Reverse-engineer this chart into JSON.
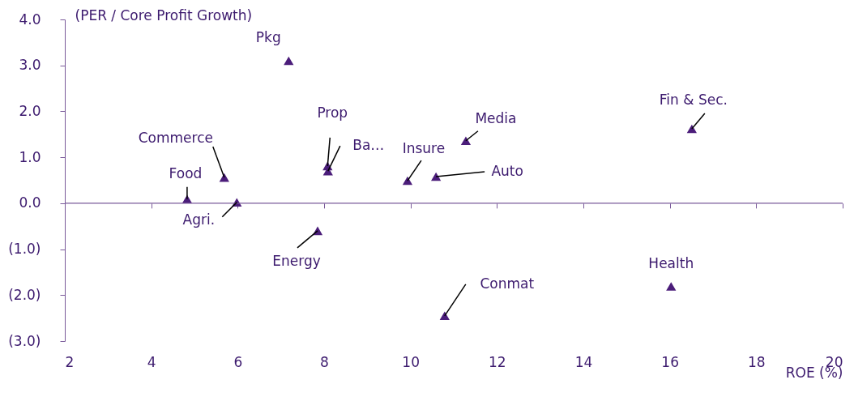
{
  "chart_data": {
    "type": "scatter",
    "ylabel": "(PER / Core Profit Growth)",
    "xlabel": "ROE (%)",
    "x": [
      7.18,
      5.69,
      4.83,
      5.98,
      8.08,
      8.09,
      7.85,
      9.93,
      10.59,
      11.28,
      10.79,
      16.51,
      16.03
    ],
    "series": [
      {
        "color": "#4b1d7a",
        "values": [
          3.1,
          0.56,
          0.09,
          0.02,
          0.81,
          0.7,
          -0.6,
          0.49,
          0.58,
          1.36,
          -2.45,
          1.62,
          -1.81
        ]
      }
    ],
    "marker": "triangle",
    "grid": false,
    "ref_lines": [
      {
        "axis": "y",
        "value": 0,
        "color": "#7a5a9a"
      }
    ],
    "xlim": [
      2,
      20
    ],
    "xticks": [
      2,
      4,
      6,
      8,
      10,
      12,
      14,
      16,
      18,
      20
    ],
    "ylim": [
      -3,
      4
    ],
    "yticks": [
      {
        "value": 4,
        "label": "4.0"
      },
      {
        "value": 3,
        "label": "3.0"
      },
      {
        "value": 2,
        "label": "2.0"
      },
      {
        "value": 1,
        "label": "1.0"
      },
      {
        "value": 0,
        "label": "0.0"
      },
      {
        "value": -1,
        "label": "(1.0)"
      },
      {
        "value": -2,
        "label": "(2.0)"
      },
      {
        "value": -3,
        "label": "(3.0)"
      }
    ],
    "annotations": [
      {
        "text": "Pkg",
        "x": 7.18,
        "y": 3.1
      },
      {
        "text": "Commerce",
        "x": 5.69,
        "y": 0.56
      },
      {
        "text": "Food",
        "x": 4.83,
        "y": 0.09
      },
      {
        "text": "Agri.",
        "x": 5.98,
        "y": 0.02
      },
      {
        "text": "Prop",
        "x": 8.08,
        "y": 0.81
      },
      {
        "text": "Ba…",
        "x": 8.09,
        "y": 0.7
      },
      {
        "text": "Energy",
        "x": 7.85,
        "y": -0.6
      },
      {
        "text": "Insure",
        "x": 9.93,
        "y": 0.49
      },
      {
        "text": "Auto",
        "x": 10.59,
        "y": 0.58
      },
      {
        "text": "Media",
        "x": 11.28,
        "y": 1.36
      },
      {
        "text": "Conmat",
        "x": 10.79,
        "y": -2.45
      },
      {
        "text": "Fin & Sec.",
        "x": 16.51,
        "y": 1.62
      },
      {
        "text": "Health",
        "x": 16.03,
        "y": -1.81
      }
    ]
  }
}
